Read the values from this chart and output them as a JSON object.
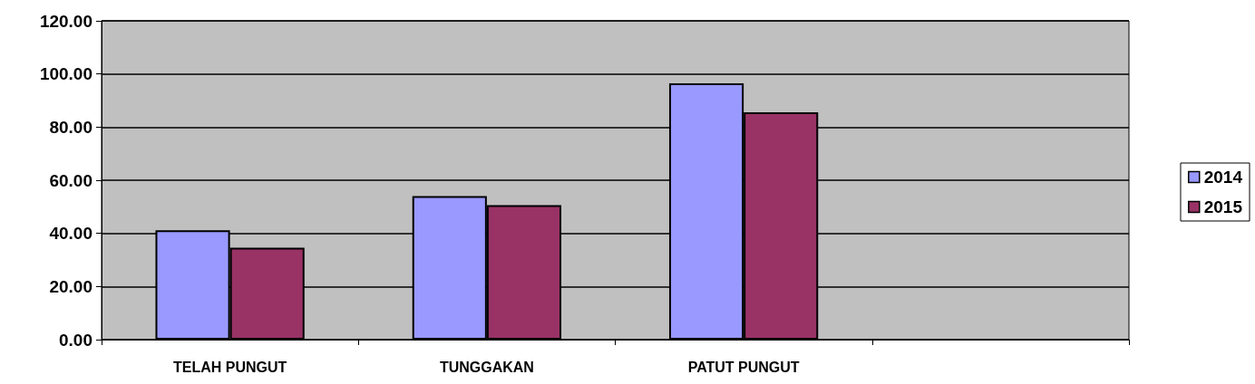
{
  "chart_data": {
    "type": "bar",
    "categories": [
      "TELAH PUNGUT",
      "TUNGGAKAN",
      "PATUT PUNGUT",
      null
    ],
    "series": [
      {
        "name": "2014",
        "color": "#9999ff",
        "values": [
          41.2,
          54.0,
          96.5,
          null
        ]
      },
      {
        "name": "2015",
        "color": "#993366",
        "values": [
          34.6,
          50.6,
          85.6,
          null
        ]
      }
    ],
    "ylim": [
      0,
      120
    ],
    "yticks": [
      {
        "value": 0,
        "label": "0.00"
      },
      {
        "value": 20,
        "label": "20.00"
      },
      {
        "value": 40,
        "label": "40.00"
      },
      {
        "value": 60,
        "label": "60.00"
      },
      {
        "value": 80,
        "label": "80.00"
      },
      {
        "value": 100,
        "label": "100.00"
      },
      {
        "value": 120,
        "label": "120.00"
      }
    ],
    "grid": "y",
    "legend": "right"
  }
}
